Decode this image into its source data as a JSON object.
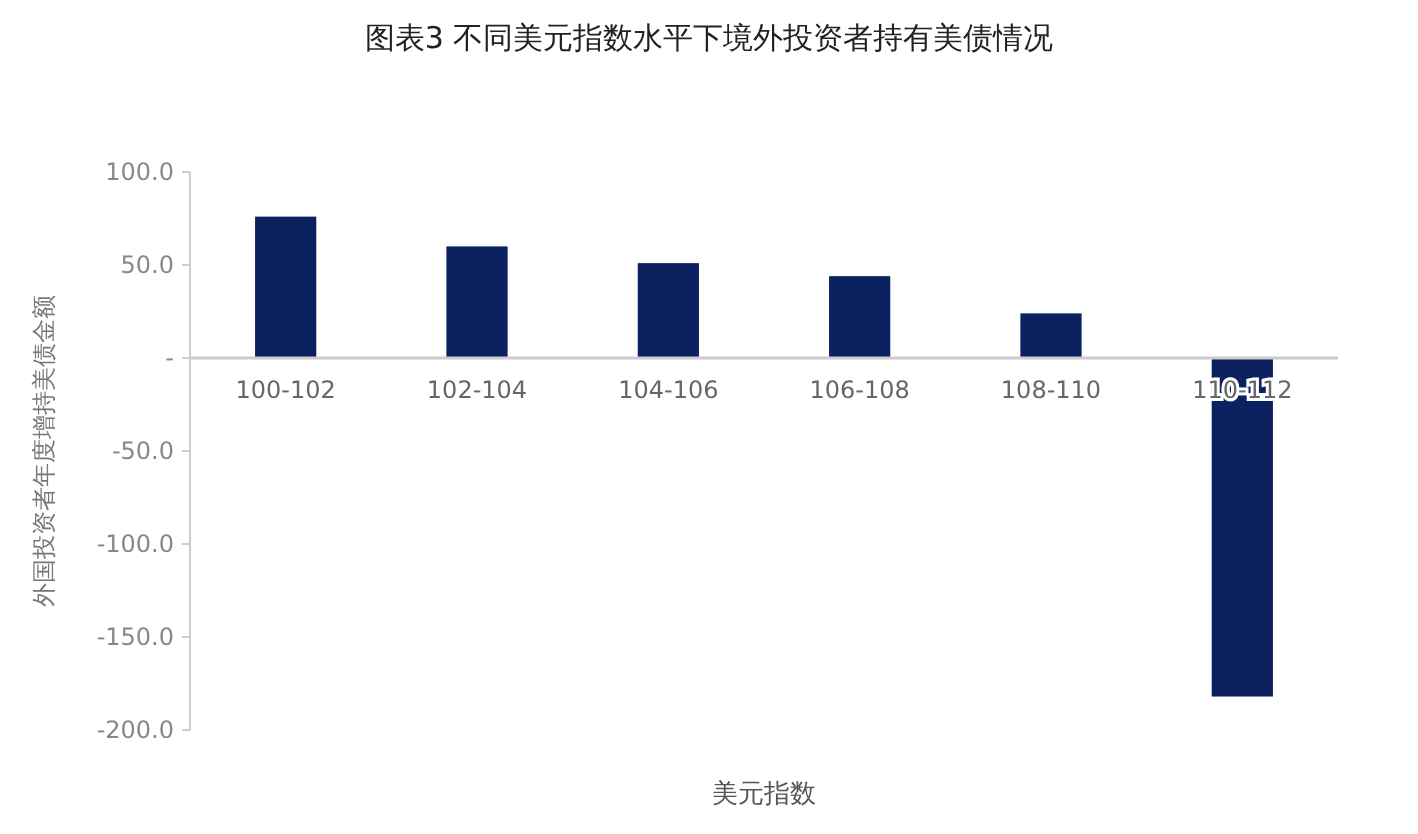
{
  "chart_data": {
    "type": "bar",
    "title": "图表3 不同美元指数水平下境外投资者持有美债情况",
    "xlabel": "美元指数",
    "ylabel": "外国投资者年度增持美债金额",
    "categories": [
      "100-102",
      "102-104",
      "104-106",
      "106-108",
      "108-110",
      "110-112"
    ],
    "values": [
      76,
      60,
      51,
      44,
      24,
      -182
    ],
    "color": "#0b2160",
    "ylim": [
      -200,
      100
    ],
    "yticks": [
      {
        "value": -200,
        "label": "-200.0"
      },
      {
        "value": -150,
        "label": "-150.0"
      },
      {
        "value": -100,
        "label": "-100.0"
      },
      {
        "value": -50,
        "label": "-50.0"
      },
      {
        "value": 0,
        "label": "-"
      },
      {
        "value": 50,
        "label": "50.0"
      },
      {
        "value": 100,
        "label": "100.0"
      }
    ],
    "grid": false
  }
}
